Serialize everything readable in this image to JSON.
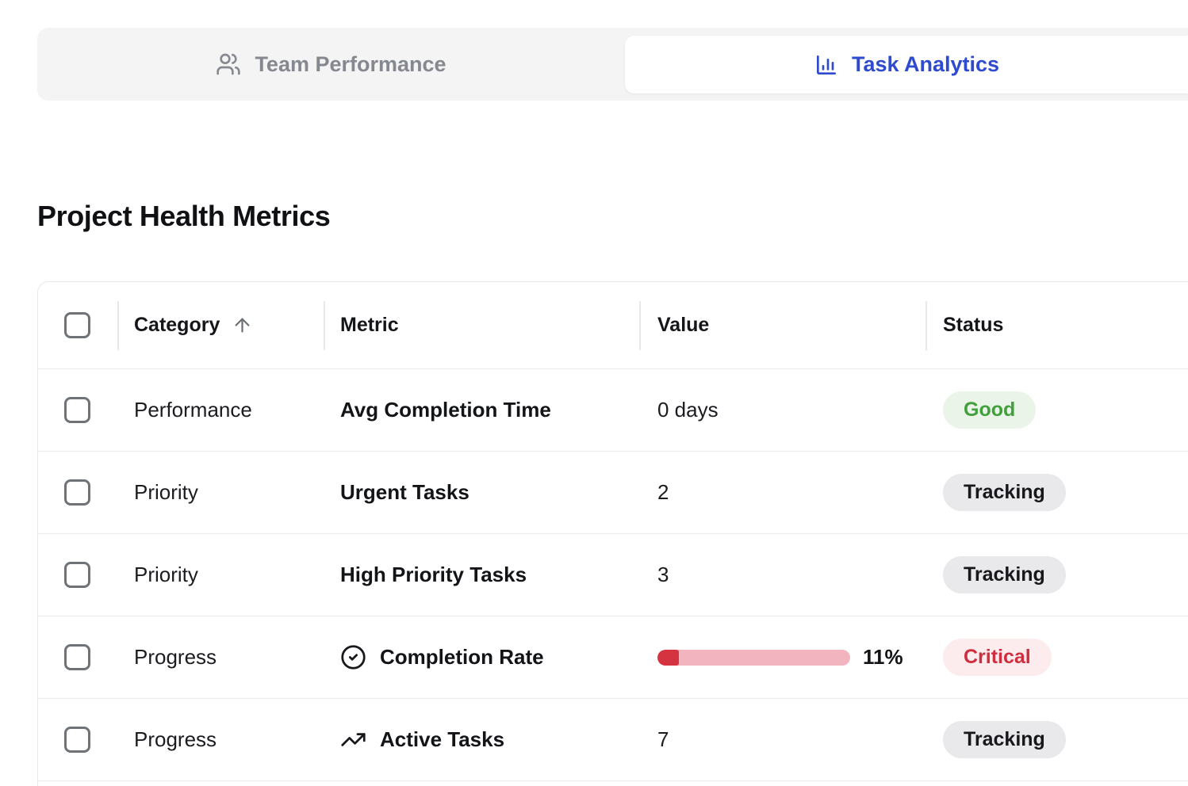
{
  "tabs": {
    "team_performance": {
      "label": "Team Performance",
      "icon": "users-icon",
      "active": false
    },
    "task_analytics": {
      "label": "Task Analytics",
      "icon": "bar-chart-icon",
      "active": true
    }
  },
  "page": {
    "title": "Project Health Metrics"
  },
  "table": {
    "headers": {
      "category": "Category",
      "metric": "Metric",
      "value": "Value",
      "status": "Status"
    },
    "sort": {
      "column": "Category",
      "direction": "ascending",
      "icon": "arrow-up-icon"
    },
    "rows": [
      {
        "category": "Performance",
        "metric": "Avg Completion Time",
        "value": "0 days",
        "status": "Good",
        "status_variant": "good"
      },
      {
        "category": "Priority",
        "metric": "Urgent Tasks",
        "value": "2",
        "status": "Tracking",
        "status_variant": "neutral"
      },
      {
        "category": "Priority",
        "metric": "High Priority Tasks",
        "value": "3",
        "status": "Tracking",
        "status_variant": "neutral"
      },
      {
        "category": "Progress",
        "metric": "Completion Rate",
        "metric_icon": "circle-check-icon",
        "progress_percent": 11,
        "progress_label": "11%",
        "status": "Critical",
        "status_variant": "critical"
      },
      {
        "category": "Progress",
        "metric": "Active Tasks",
        "metric_icon": "trending-up-icon",
        "value": "7",
        "status": "Tracking",
        "status_variant": "neutral"
      }
    ]
  },
  "colors": {
    "accent_blue": "#2e4bd0",
    "inactive_tab_gray": "#85888f",
    "status_good_text": "#41a03c",
    "status_good_bg": "#eaf4e8",
    "status_neutral_text": "#17181b",
    "status_neutral_bg": "#e9e9eb",
    "status_critical_text": "#cf2e3f",
    "status_critical_bg": "#fcecee",
    "progress_fill": "#d63340",
    "progress_track": "#f2b4be"
  }
}
